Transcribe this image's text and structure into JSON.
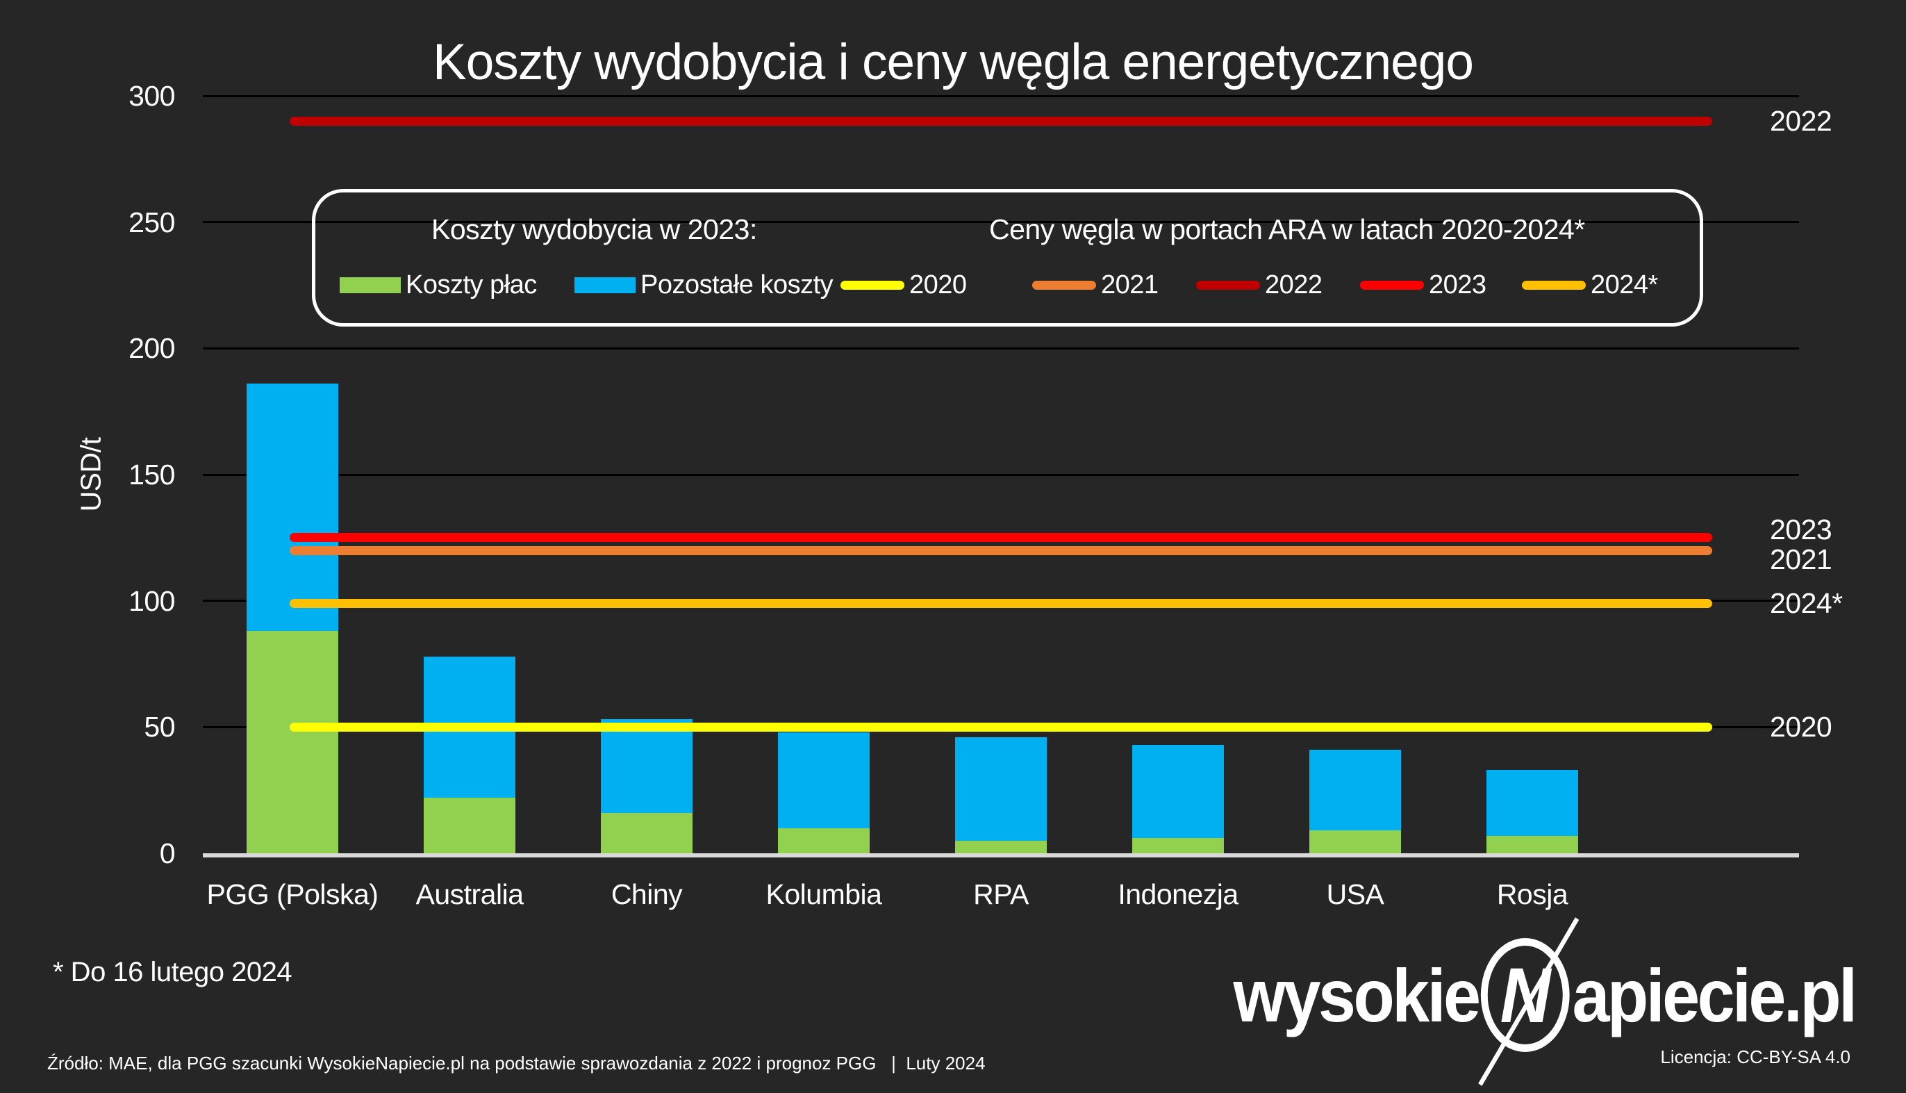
{
  "title": "Koszty wydobycia i ceny węgla energetycznego",
  "y_axis": {
    "title": "USD/t",
    "ticks": [
      300,
      250,
      200,
      150,
      100,
      50,
      0
    ]
  },
  "chart_data": {
    "type": "bar",
    "stacked": true,
    "title": "Koszty wydobycia i ceny węgla energetycznego",
    "ylabel": "USD/t",
    "ylim": [
      0,
      300
    ],
    "grid": true,
    "legend_position": "top",
    "categories": [
      "PGG (Polska)",
      "Australia",
      "Chiny",
      "Kolumbia",
      "RPA",
      "Indonezja",
      "USA",
      "Rosja"
    ],
    "series": [
      {
        "name": "Koszty płac",
        "color": "#92D050",
        "values": [
          88,
          22,
          16,
          10,
          5,
          6,
          9,
          7
        ]
      },
      {
        "name": "Pozostałe koszty",
        "color": "#00B0F0",
        "values": [
          98,
          56,
          37,
          38,
          41,
          37,
          32,
          26
        ]
      }
    ],
    "totals": [
      186,
      78,
      53,
      48,
      46,
      43,
      41,
      33
    ],
    "hlines": [
      {
        "label": "2020",
        "value": 50,
        "color": "#FFFF00"
      },
      {
        "label": "2021",
        "value": 120,
        "color": "#ED7D31"
      },
      {
        "label": "2022",
        "value": 290,
        "color": "#C00000"
      },
      {
        "label": "2023",
        "value": 125,
        "color": "#FF0000"
      },
      {
        "label": "2024*",
        "value": 99,
        "color": "#FFC000"
      }
    ]
  },
  "legend": {
    "left_header": "Koszty wydobycia w 2023:",
    "right_header": "Ceny węgla w portach ARA w latach 2020-2024*",
    "bar_items": [
      {
        "label": "Koszty płac",
        "color": "#92D050"
      },
      {
        "label": "Pozostałe koszty",
        "color": "#00B0F0"
      }
    ],
    "line_items": [
      {
        "label": "2020",
        "color": "#FFFF00"
      },
      {
        "label": "2021",
        "color": "#ED7D31"
      },
      {
        "label": "2022",
        "color": "#C00000"
      },
      {
        "label": "2023",
        "color": "#FF0000"
      },
      {
        "label": "2024*",
        "color": "#FFC000"
      }
    ]
  },
  "footnote": "* Do 16 lutego 2024",
  "source": "Źródło: MAE, dla PGG szacunki WysokieNapiecie.pl na podstawie sprawozdania z 2022 i prognoz PGG   |  Luty 2024",
  "license": "Licencja: CC-BY-SA 4.0",
  "logo": {
    "prefix": "wysokie",
    "mark": "N",
    "suffix": "apiecie.pl"
  },
  "colors": {
    "background": "#262626",
    "gridline": "#000000",
    "axis_line": "#D9D9D9",
    "text": "#FFFFFF"
  }
}
